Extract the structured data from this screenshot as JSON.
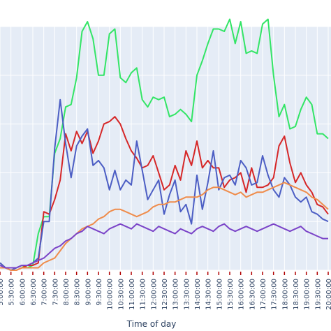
{
  "chart_data": {
    "type": "line",
    "xlabel": "Time of day",
    "ylabel": "",
    "ylim": [
      0,
      100
    ],
    "grid": true,
    "colors": {
      "plot_background": "#e5ecf6",
      "gridline": "#ffffff",
      "tick_mark": "#b00000",
      "series": [
        "#33e566",
        "#d62728",
        "#4c5ec4",
        "#ef8c4b",
        "#7b44c8"
      ]
    },
    "x": [
      "5:00:00",
      "5:15:00",
      "5:30:00",
      "5:45:00",
      "6:00:00",
      "6:15:00",
      "6:30:00",
      "6:45:00",
      "7:00:00",
      "7:15:00",
      "7:30:00",
      "7:45:00",
      "8:00:00",
      "8:15:00",
      "8:30:00",
      "8:45:00",
      "9:00:00",
      "9:15:00",
      "9:30:00",
      "9:45:00",
      "10:00:00",
      "10:15:00",
      "10:30:00",
      "10:45:00",
      "11:00:00",
      "11:15:00",
      "11:30:00",
      "11:45:00",
      "12:00:00",
      "12:15:00",
      "12:30:00",
      "12:45:00",
      "13:00:00",
      "13:15:00",
      "13:30:00",
      "13:45:00",
      "14:00:00",
      "14:15:00",
      "14:30:00",
      "14:45:00",
      "15:00:00",
      "15:15:00",
      "15:30:00",
      "15:45:00",
      "16:00:00",
      "16:15:00",
      "16:30:00",
      "16:45:00",
      "17:00:00",
      "17:15:00",
      "17:30:00",
      "17:45:00",
      "18:00:00",
      "18:15:00",
      "18:30:00",
      "18:45:00",
      "19:00:00",
      "19:15:00",
      "19:30:00",
      "19:45:00",
      "20:00:00"
    ],
    "tick_labels": [
      "5:00:00",
      "5:30:00",
      "6:00:00",
      "6:30:00",
      "7:00:00",
      "7:30:00",
      "8:00:00",
      "8:30:00",
      "9:00:00",
      "9:30:00",
      "10:00:00",
      "10:30:00",
      "11:00:00",
      "11:30:00",
      "12:00:00",
      "12:30:00",
      "13:00:00",
      "13:30:00",
      "14:00:00",
      "14:30:00",
      "15:00:00",
      "15:30:00",
      "16:00:00",
      "16:30:00",
      "17:00:00",
      "17:30:00",
      "18:00:00",
      "18:30:00",
      "19:00:00",
      "19:30:00",
      "20:00:00"
    ],
    "series": [
      {
        "values": [
          3,
          1,
          0,
          1,
          2,
          1,
          2,
          15,
          22,
          22,
          48,
          54,
          67,
          68,
          79,
          98,
          102,
          95,
          80,
          80,
          97,
          99,
          79,
          77,
          81,
          83,
          70,
          67,
          71,
          70,
          71,
          63,
          64,
          66,
          64,
          61,
          80,
          86,
          93,
          99,
          99,
          98,
          103,
          93,
          102,
          89,
          90,
          89,
          101,
          103,
          80,
          63,
          68,
          58,
          59,
          66,
          71,
          68,
          56,
          56,
          54
        ],
        "name": "",
        "color_key": 0
      },
      {
        "values": [
          3,
          1,
          0,
          0,
          1,
          2,
          2,
          3,
          24,
          23,
          29,
          37,
          56,
          49,
          57,
          52,
          57,
          48,
          53,
          60,
          61,
          63,
          60,
          54,
          49,
          46,
          42,
          43,
          47,
          40,
          33,
          35,
          43,
          37,
          49,
          43,
          53,
          42,
          45,
          42,
          42,
          34,
          37,
          38,
          40,
          32,
          42,
          34,
          34,
          35,
          38,
          51,
          55,
          44,
          36,
          40,
          35,
          32,
          27,
          26,
          23
        ],
        "name": "",
        "color_key": 1
      },
      {
        "values": [
          3,
          1,
          0,
          1,
          2,
          2,
          3,
          5,
          20,
          20,
          50,
          70,
          52,
          38,
          51,
          55,
          58,
          43,
          45,
          42,
          33,
          41,
          33,
          37,
          35,
          53,
          41,
          29,
          33,
          37,
          23,
          31,
          37,
          24,
          27,
          19,
          39,
          25,
          36,
          49,
          33,
          38,
          39,
          35,
          45,
          42,
          35,
          36,
          47,
          39,
          33,
          30,
          38,
          35,
          30,
          28,
          30,
          24,
          23,
          21,
          20
        ],
        "name": "",
        "color_key": 2
      },
      {
        "values": [
          1,
          1,
          0,
          0,
          1,
          1,
          1,
          1,
          3,
          4,
          5,
          8,
          11,
          13,
          15,
          17,
          18,
          19,
          21,
          22,
          24,
          25,
          25,
          24,
          23,
          22,
          23,
          24,
          26,
          27,
          27,
          28,
          28,
          29,
          30,
          30,
          30,
          31,
          33,
          34,
          34,
          33,
          32,
          31,
          32,
          30,
          31,
          32,
          32,
          33,
          34,
          35,
          36,
          35,
          34,
          33,
          32,
          30,
          29,
          27,
          25
        ],
        "name": "",
        "color_key": 3
      },
      {
        "values": [
          2,
          1,
          1,
          1,
          2,
          2,
          3,
          4,
          5,
          7,
          9,
          10,
          12,
          13,
          15,
          16,
          18,
          17,
          16,
          15,
          17,
          18,
          19,
          18,
          17,
          19,
          18,
          17,
          16,
          18,
          17,
          16,
          15,
          17,
          16,
          15,
          17,
          18,
          17,
          16,
          18,
          19,
          17,
          16,
          17,
          18,
          17,
          16,
          17,
          18,
          19,
          18,
          17,
          16,
          17,
          18,
          16,
          15,
          14,
          13,
          13
        ],
        "name": "",
        "color_key": 4
      }
    ]
  }
}
